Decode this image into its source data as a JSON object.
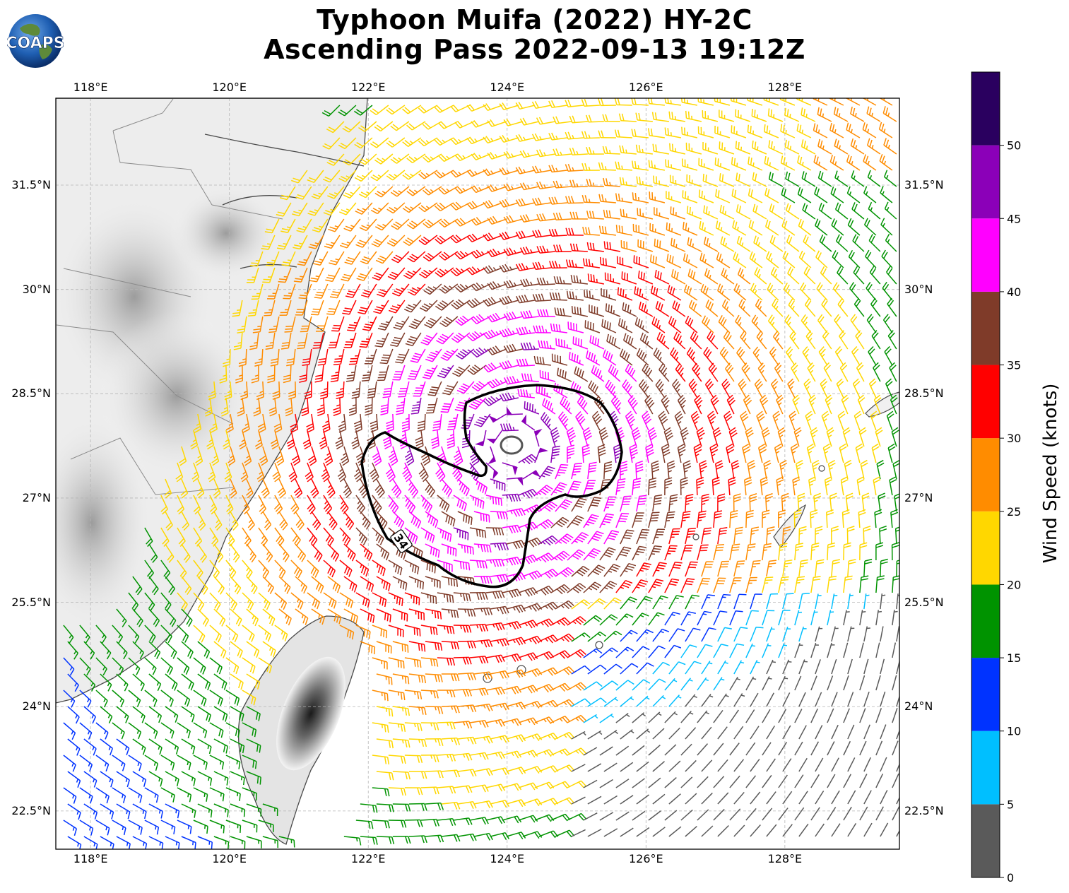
{
  "title": {
    "line1": "Typhoon Muifa (2022) HY-2C",
    "line2": "Ascending Pass 2022-09-13 19:12Z"
  },
  "logo": {
    "text": "COAPS",
    "icon": "globe-icon"
  },
  "map": {
    "lon_ticks": [
      "118°E",
      "120°E",
      "122°E",
      "124°E",
      "126°E",
      "128°E"
    ],
    "lat_ticks": [
      "31.5°N",
      "30°N",
      "28.5°N",
      "27°N",
      "25.5°N",
      "24°N",
      "22.5°N"
    ],
    "lon_values": [
      118,
      120,
      122,
      124,
      126,
      128
    ],
    "lat_values": [
      31.5,
      30,
      28.5,
      27,
      25.5,
      24,
      22.5
    ],
    "lon_range": [
      117.5,
      129.65
    ],
    "lat_range": [
      21.95,
      32.75
    ],
    "storm_center": {
      "lon": 124.1,
      "lat": 27.75
    },
    "contour_label": "34"
  },
  "colorbar": {
    "label": "Wind Speed (knots)",
    "ticks": [
      "0",
      "5",
      "10",
      "15",
      "20",
      "25",
      "30",
      "35",
      "40",
      "45",
      "50"
    ],
    "bins": [
      {
        "from": 0,
        "to": 5,
        "color": "#5a5a5a"
      },
      {
        "from": 5,
        "to": 10,
        "color": "#00bfff"
      },
      {
        "from": 10,
        "to": 15,
        "color": "#0033ff"
      },
      {
        "from": 15,
        "to": 20,
        "color": "#009300"
      },
      {
        "from": 20,
        "to": 25,
        "color": "#ffd700"
      },
      {
        "from": 25,
        "to": 30,
        "color": "#ff8c00"
      },
      {
        "from": 30,
        "to": 35,
        "color": "#ff0000"
      },
      {
        "from": 35,
        "to": 40,
        "color": "#7f3b29"
      },
      {
        "from": 40,
        "to": 45,
        "color": "#ff00ff"
      },
      {
        "from": 45,
        "to": 50,
        "color": "#8b00b8"
      },
      {
        "from": 50,
        "to": 55,
        "color": "#2a005f"
      }
    ]
  }
}
